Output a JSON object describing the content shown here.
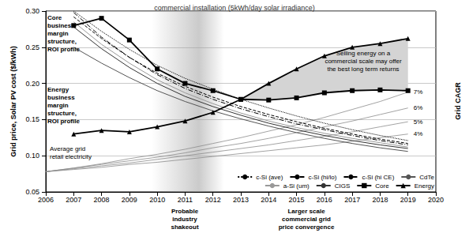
{
  "chart_data": {
    "type": "line",
    "title": "commercial installation (5kWh/day solar irradiance)",
    "y_label": "Grid price, Solar PV cost ($/kWh)",
    "x": [
      2006,
      2007,
      2008,
      2009,
      2010,
      2011,
      2012,
      2013,
      2014,
      2015,
      2016,
      2017,
      2018,
      2019
    ],
    "xlim": [
      2006,
      2020
    ],
    "xticks": [
      2006,
      2007,
      2008,
      2009,
      2010,
      2011,
      2012,
      2013,
      2014,
      2015,
      2016,
      2017,
      2018,
      2019,
      2020
    ],
    "ylim": [
      0.05,
      0.3
    ],
    "yticks": [
      0.05,
      {
        "value": 0.1,
        "label": "0.10"
      },
      0.15,
      {
        "value": 0.2,
        "label": "0.20"
      },
      0.25,
      {
        "value": 0.3,
        "label": "0.30"
      }
    ],
    "grid": true,
    "legend": "bottom right",
    "series": [
      {
        "name": "c-Si (ave)",
        "color": "#000000",
        "line_style": "dotted",
        "marker": "none",
        "values": [
          null,
          0.3,
          0.272,
          0.247,
          0.225,
          0.207,
          0.192,
          0.178,
          0.166,
          0.155,
          0.145,
          0.136,
          0.128,
          0.121
        ]
      },
      {
        "name": "c-Si (hi/lo)",
        "color": "#000000",
        "line_style": "dashed",
        "marker": "none",
        "values": [
          null,
          0.292,
          0.262,
          0.236,
          0.214,
          0.196,
          0.181,
          0.168,
          0.157,
          0.147,
          0.138,
          0.13,
          0.123,
          0.117
        ]
      },
      {
        "name": "c-Si (hi CE)",
        "color": "#000000",
        "line_style": "dashdot",
        "marker": "none",
        "values": [
          null,
          0.298,
          0.264,
          0.236,
          0.212,
          0.193,
          0.178,
          0.165,
          0.154,
          0.144,
          0.136,
          0.128,
          0.121,
          0.115
        ]
      },
      {
        "name": "CdTe",
        "color": "#555555",
        "line_style": "solid",
        "marker": "none",
        "values": [
          null,
          0.25,
          0.228,
          0.208,
          0.19,
          0.175,
          0.162,
          0.151,
          0.141,
          0.132,
          0.124,
          0.117,
          0.111,
          0.106
        ]
      },
      {
        "name": "a-Si (um)",
        "color": "#999999",
        "line_style": "solid",
        "marker": "none",
        "values": [
          null,
          0.285,
          0.254,
          0.228,
          0.205,
          0.187,
          0.172,
          0.159,
          0.148,
          0.139,
          0.131,
          0.124,
          0.118,
          0.112
        ]
      },
      {
        "name": "CIGS",
        "color": "#333333",
        "line_style": "solid",
        "marker": "none",
        "values": [
          null,
          0.278,
          0.248,
          0.222,
          0.2,
          0.182,
          0.168,
          0.156,
          0.145,
          0.136,
          0.128,
          0.121,
          0.115,
          0.11
        ]
      },
      {
        "name": "Core",
        "color": "#000000",
        "line_style": "solid",
        "marker": "square",
        "values": [
          null,
          0.28,
          0.29,
          0.26,
          0.22,
          0.2,
          0.19,
          0.178,
          0.177,
          0.18,
          0.187,
          0.19,
          0.191,
          0.19
        ]
      },
      {
        "name": "Energy",
        "color": "#000000",
        "line_style": "solid",
        "marker": "triangle",
        "values": [
          null,
          0.13,
          0.135,
          0.133,
          0.14,
          0.148,
          0.16,
          0.178,
          0.2,
          0.22,
          0.238,
          0.25,
          0.255,
          0.262
        ]
      }
    ],
    "grid_cagr": {
      "label": "Grid CAGR",
      "series": [
        {
          "name": "4%",
          "color": "#8c8c8c",
          "line_style": "solid",
          "values": [
            0.078,
            0.081,
            0.084,
            0.088,
            0.091,
            0.095,
            0.099,
            0.103,
            0.107,
            0.111,
            0.115,
            0.12,
            0.125,
            0.13
          ]
        },
        {
          "name": "5%",
          "color": "#8c8c8c",
          "line_style": "solid",
          "values": [
            0.078,
            0.082,
            0.086,
            0.09,
            0.095,
            0.1,
            0.105,
            0.11,
            0.115,
            0.121,
            0.127,
            0.133,
            0.14,
            0.147
          ]
        },
        {
          "name": "6%",
          "color": "#8c8c8c",
          "line_style": "solid",
          "values": [
            0.078,
            0.083,
            0.088,
            0.093,
            0.098,
            0.104,
            0.111,
            0.117,
            0.124,
            0.132,
            0.14,
            0.148,
            0.157,
            0.166
          ]
        },
        {
          "name": "7%",
          "color": "#8c8c8c",
          "line_style": "solid",
          "values": [
            0.078,
            0.083,
            0.089,
            0.096,
            0.102,
            0.109,
            0.117,
            0.125,
            0.134,
            0.143,
            0.153,
            0.164,
            0.175,
            0.188
          ]
        }
      ]
    },
    "shaded_between": {
      "series": [
        "Energy",
        "Core"
      ],
      "x": [
        2013,
        2019
      ],
      "color": "#d4d4d4"
    },
    "shaded_band": {
      "label": "Probable\nindustry\nshakeout",
      "x": [
        2009.8,
        2012.4
      ],
      "color": "#a0a0a0"
    },
    "annotations": [
      "Core\nbusiness\nmargin\nstructure,\nROI profile",
      "Energy\nbusiness\nmargin\nstructure,\nROI profile",
      "Average grid\nretail electricity",
      "Selling energy on a\ncommercial scale may offer\nthe best long term returns",
      "Larger scale\ncommercial grid\nprice convergence"
    ]
  }
}
